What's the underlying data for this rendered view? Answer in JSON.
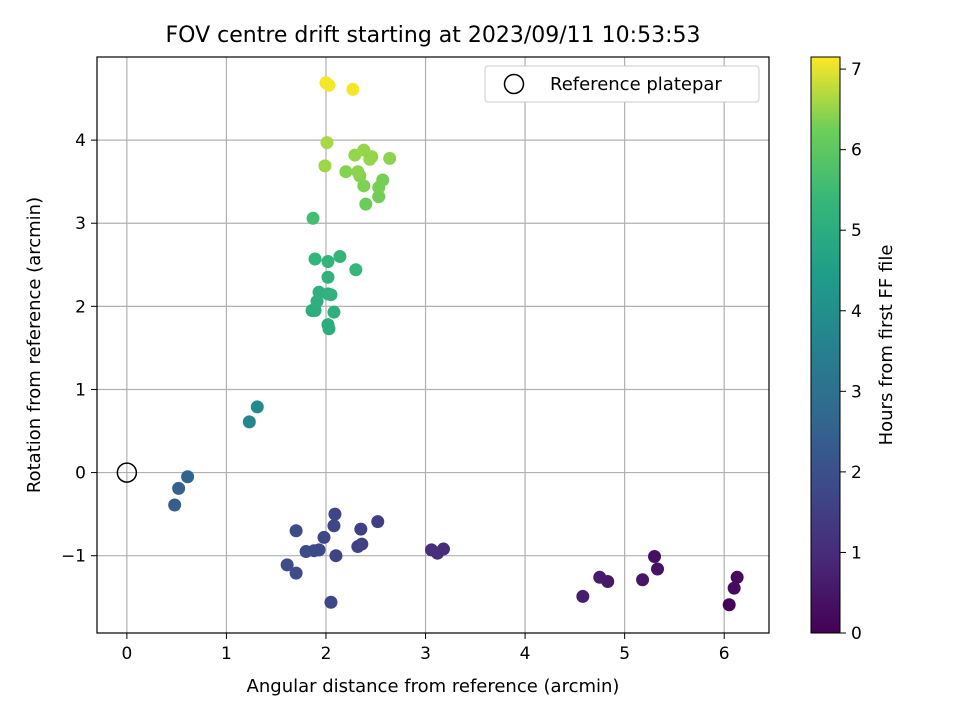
{
  "chart_data": {
    "type": "scatter",
    "title": "FOV centre drift starting at 2023/09/11 10:53:53",
    "xlabel": "Angular distance from reference (arcmin)",
    "ylabel": "Rotation from reference (arcmin)",
    "xlim": [
      -0.3,
      6.45
    ],
    "ylim": [
      -1.93,
      5.0
    ],
    "xticks": [
      "0",
      "1",
      "2",
      "3",
      "4",
      "5",
      "6"
    ],
    "xtick_values": [
      0,
      1,
      2,
      3,
      4,
      5,
      6
    ],
    "yticks": [
      "−1",
      "0",
      "1",
      "2",
      "3",
      "4"
    ],
    "ytick_values": [
      -1,
      0,
      1,
      2,
      3,
      4
    ],
    "grid": true,
    "legend": {
      "placement": "top-right",
      "label": "Reference platepar"
    },
    "reference_point": {
      "x": 0,
      "y": 0
    },
    "colorbar": {
      "label": "Hours from first FF file",
      "range": [
        0,
        7.15
      ],
      "ticks": [
        "0",
        "1",
        "2",
        "3",
        "4",
        "5",
        "6",
        "7"
      ],
      "tick_values": [
        0,
        1,
        2,
        3,
        4,
        5,
        6,
        7
      ],
      "colormap": "viridis"
    },
    "points": [
      {
        "x": 6.05,
        "y": -1.59,
        "t": 0.1
      },
      {
        "x": 6.13,
        "y": -1.26,
        "t": 0.2
      },
      {
        "x": 6.1,
        "y": -1.39,
        "t": 0.25
      },
      {
        "x": 5.3,
        "y": -1.01,
        "t": 0.35
      },
      {
        "x": 5.33,
        "y": -1.16,
        "t": 0.4
      },
      {
        "x": 5.18,
        "y": -1.29,
        "t": 0.45
      },
      {
        "x": 4.83,
        "y": -1.31,
        "t": 0.55
      },
      {
        "x": 4.75,
        "y": -1.26,
        "t": 0.6
      },
      {
        "x": 4.58,
        "y": -1.49,
        "t": 0.65
      },
      {
        "x": 3.18,
        "y": -0.92,
        "t": 1.0
      },
      {
        "x": 3.12,
        "y": -0.97,
        "t": 1.05
      },
      {
        "x": 3.06,
        "y": -0.93,
        "t": 1.1
      },
      {
        "x": 2.52,
        "y": -0.59,
        "t": 1.5
      },
      {
        "x": 2.35,
        "y": -0.68,
        "t": 1.55
      },
      {
        "x": 2.36,
        "y": -0.86,
        "t": 1.6
      },
      {
        "x": 2.32,
        "y": -0.89,
        "t": 1.6
      },
      {
        "x": 2.1,
        "y": -1.0,
        "t": 1.65
      },
      {
        "x": 2.08,
        "y": -0.64,
        "t": 1.7
      },
      {
        "x": 2.09,
        "y": -0.5,
        "t": 1.7
      },
      {
        "x": 1.98,
        "y": -0.78,
        "t": 1.75
      },
      {
        "x": 1.93,
        "y": -0.93,
        "t": 1.8
      },
      {
        "x": 1.88,
        "y": -0.94,
        "t": 1.8
      },
      {
        "x": 1.8,
        "y": -0.95,
        "t": 1.85
      },
      {
        "x": 1.7,
        "y": -0.7,
        "t": 1.85
      },
      {
        "x": 1.7,
        "y": -1.21,
        "t": 1.9
      },
      {
        "x": 1.61,
        "y": -1.11,
        "t": 1.9
      },
      {
        "x": 2.05,
        "y": -1.56,
        "t": 1.75
      },
      {
        "x": 0.48,
        "y": -0.39,
        "t": 2.4
      },
      {
        "x": 0.52,
        "y": -0.19,
        "t": 2.5
      },
      {
        "x": 0.61,
        "y": -0.05,
        "t": 2.6
      },
      {
        "x": 1.23,
        "y": 0.61,
        "t": 3.7
      },
      {
        "x": 1.31,
        "y": 0.79,
        "t": 3.85
      },
      {
        "x": 2.03,
        "y": 1.73,
        "t": 5.0
      },
      {
        "x": 2.02,
        "y": 1.78,
        "t": 5.0
      },
      {
        "x": 1.86,
        "y": 1.95,
        "t": 5.05
      },
      {
        "x": 1.89,
        "y": 1.95,
        "t": 5.05
      },
      {
        "x": 2.08,
        "y": 1.93,
        "t": 5.1
      },
      {
        "x": 1.91,
        "y": 2.06,
        "t": 5.1
      },
      {
        "x": 1.93,
        "y": 2.17,
        "t": 5.1
      },
      {
        "x": 2.02,
        "y": 2.15,
        "t": 5.15
      },
      {
        "x": 2.05,
        "y": 2.14,
        "t": 5.15
      },
      {
        "x": 2.02,
        "y": 2.35,
        "t": 5.2
      },
      {
        "x": 1.89,
        "y": 2.57,
        "t": 5.25
      },
      {
        "x": 2.02,
        "y": 2.54,
        "t": 5.25
      },
      {
        "x": 2.14,
        "y": 2.6,
        "t": 5.3
      },
      {
        "x": 2.3,
        "y": 2.44,
        "t": 5.35
      },
      {
        "x": 1.87,
        "y": 3.06,
        "t": 5.6
      },
      {
        "x": 2.4,
        "y": 3.23,
        "t": 6.2
      },
      {
        "x": 2.53,
        "y": 3.32,
        "t": 6.25
      },
      {
        "x": 2.53,
        "y": 3.43,
        "t": 6.3
      },
      {
        "x": 2.57,
        "y": 3.52,
        "t": 6.3
      },
      {
        "x": 2.38,
        "y": 3.45,
        "t": 6.35
      },
      {
        "x": 2.34,
        "y": 3.57,
        "t": 6.4
      },
      {
        "x": 2.2,
        "y": 3.62,
        "t": 6.4
      },
      {
        "x": 2.32,
        "y": 3.62,
        "t": 6.45
      },
      {
        "x": 2.64,
        "y": 3.78,
        "t": 6.45
      },
      {
        "x": 2.44,
        "y": 3.77,
        "t": 6.5
      },
      {
        "x": 2.29,
        "y": 3.82,
        "t": 6.5
      },
      {
        "x": 2.38,
        "y": 3.88,
        "t": 6.5
      },
      {
        "x": 2.46,
        "y": 3.8,
        "t": 6.5
      },
      {
        "x": 1.99,
        "y": 3.69,
        "t": 6.55
      },
      {
        "x": 2.01,
        "y": 3.97,
        "t": 6.6
      },
      {
        "x": 2.0,
        "y": 4.69,
        "t": 7.1
      },
      {
        "x": 2.03,
        "y": 4.66,
        "t": 7.1
      },
      {
        "x": 2.27,
        "y": 4.61,
        "t": 7.1
      }
    ]
  }
}
